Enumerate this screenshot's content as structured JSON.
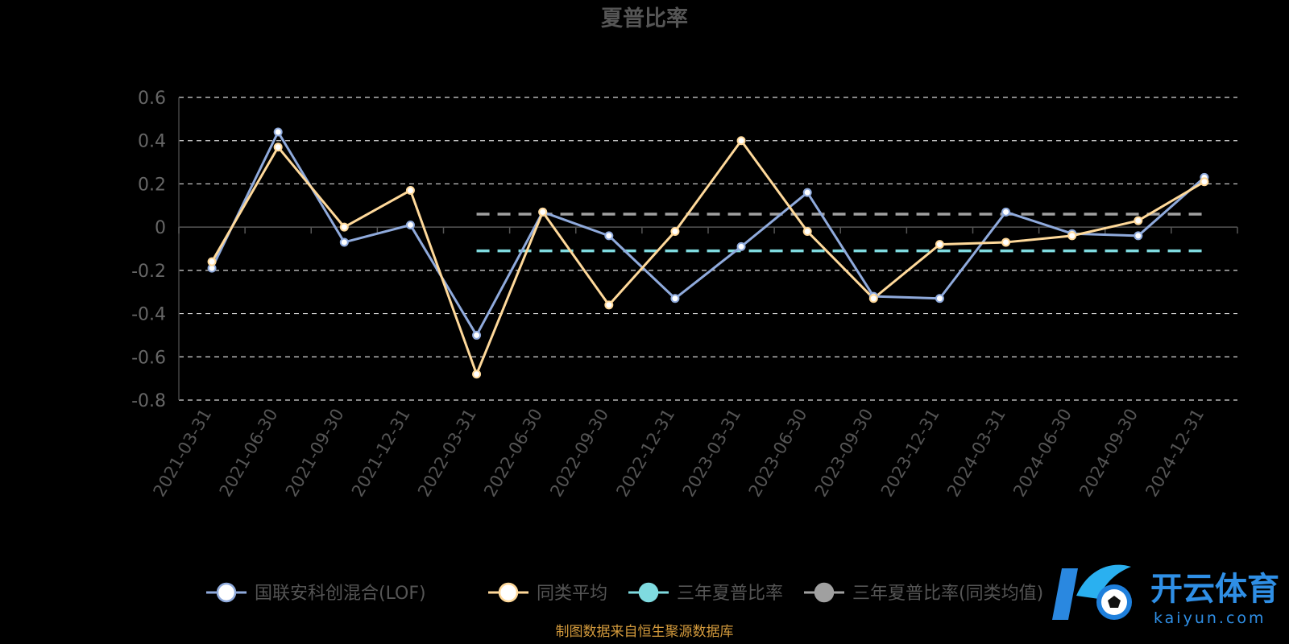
{
  "chart_data": {
    "type": "line",
    "title": "夏普比率",
    "categories": [
      "2021-03-31",
      "2021-06-30",
      "2021-09-30",
      "2021-12-31",
      "2022-03-31",
      "2022-06-30",
      "2022-09-30",
      "2022-12-31",
      "2023-03-31",
      "2023-06-30",
      "2023-09-30",
      "2023-12-31",
      "2024-03-31",
      "2024-06-30",
      "2024-09-30",
      "2024-12-31"
    ],
    "ylim": [
      -0.8,
      0.6
    ],
    "yticks": [
      0.6,
      0.4,
      0.2,
      0,
      -0.2,
      -0.4,
      -0.6,
      -0.8
    ],
    "ytick_labels": [
      "0.6",
      "0.4",
      "0.2",
      "0",
      "-0.2",
      "-0.4",
      "-0.6",
      "-0.8"
    ],
    "grid": true,
    "legend_position": "bottom",
    "series": [
      {
        "name": "国联安科创混合(LOF)",
        "color": "#8faadc",
        "marker": "#ffffff",
        "values": [
          -0.19,
          0.44,
          -0.07,
          0.01,
          -0.5,
          0.07,
          -0.04,
          -0.33,
          -0.09,
          0.16,
          -0.32,
          -0.33,
          0.07,
          -0.03,
          -0.04,
          0.23
        ]
      },
      {
        "name": "同类平均",
        "color": "#ffd99a",
        "marker": "#ffffff",
        "values": [
          -0.16,
          0.37,
          0.0,
          0.17,
          -0.68,
          0.07,
          -0.36,
          -0.02,
          0.4,
          -0.02,
          -0.33,
          -0.08,
          -0.07,
          -0.04,
          0.03,
          0.21
        ]
      }
    ],
    "reference_lines": [
      {
        "name": "三年夏普比率",
        "color": "#7fdbe0",
        "value": -0.11,
        "from": "2022-03-31",
        "to": "2024-12-31"
      },
      {
        "name": "三年夏普比率(同类均值)",
        "color": "#a0a0a0",
        "value": 0.06,
        "from": "2022-03-31",
        "to": "2024-12-31"
      }
    ],
    "legend": [
      {
        "name": "国联安科创混合(LOF)",
        "line_color": "#8faadc",
        "dot_color": "#ffffff"
      },
      {
        "name": "同类平均",
        "line_color": "#ffd99a",
        "dot_color": "#ffffff"
      },
      {
        "name": "三年夏普比率",
        "line_color": "#7fdbe0",
        "dot_color": "#7fdbe0"
      },
      {
        "name": "三年夏普比率(同类均值)",
        "line_color": "#a0a0a0",
        "dot_color": "#a0a0a0"
      }
    ]
  },
  "source_note": "制图数据来自恒生聚源数据库",
  "watermark": {
    "text": "开云体育",
    "sub": "kaiyun.com",
    "icon": "k-soccer-ball-logo"
  }
}
